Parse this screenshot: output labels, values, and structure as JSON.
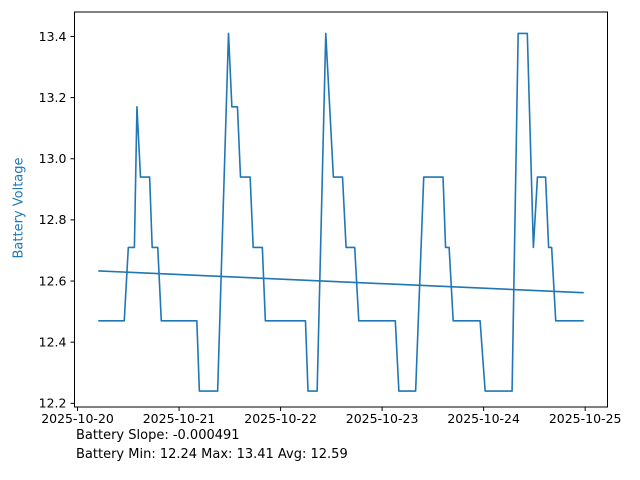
{
  "chart_data": {
    "type": "line",
    "title": "",
    "ylabel": "Battery Voltage",
    "xlabel": "",
    "background": "#ffffff",
    "axis_color": "#000000",
    "accent_color": "#1f77b4",
    "grid": false,
    "legend": "none",
    "x_unit": "date",
    "xlim": [
      -0.03,
      5.22
    ],
    "ylim": [
      12.188,
      13.48
    ],
    "x_ticks": [
      {
        "value": 0,
        "label": "2025-10-20"
      },
      {
        "value": 1,
        "label": "2025-10-21"
      },
      {
        "value": 2,
        "label": "2025-10-22"
      },
      {
        "value": 3,
        "label": "2025-10-23"
      },
      {
        "value": 4,
        "label": "2025-10-24"
      },
      {
        "value": 5,
        "label": "2025-10-25"
      }
    ],
    "y_ticks": [
      {
        "value": 12.2,
        "label": "12.2"
      },
      {
        "value": 12.4,
        "label": "12.4"
      },
      {
        "value": 12.6,
        "label": "12.6"
      },
      {
        "value": 12.8,
        "label": "12.8"
      },
      {
        "value": 13.0,
        "label": "13.0"
      },
      {
        "value": 13.2,
        "label": "13.2"
      },
      {
        "value": 13.4,
        "label": "13.4"
      }
    ],
    "series": [
      {
        "name": "Battery Voltage",
        "color": "#1f77b4",
        "width": 1.6,
        "points": [
          [
            0.21,
            12.47
          ],
          [
            0.46,
            12.47
          ],
          [
            0.5,
            12.71
          ],
          [
            0.56,
            12.71
          ],
          [
            0.585,
            13.17
          ],
          [
            0.62,
            12.94
          ],
          [
            0.71,
            12.94
          ],
          [
            0.735,
            12.71
          ],
          [
            0.79,
            12.71
          ],
          [
            0.825,
            12.47
          ],
          [
            1.175,
            12.47
          ],
          [
            1.2,
            12.24
          ],
          [
            1.38,
            12.24
          ],
          [
            1.487,
            13.41
          ],
          [
            1.52,
            13.17
          ],
          [
            1.575,
            13.17
          ],
          [
            1.605,
            12.94
          ],
          [
            1.7,
            12.94
          ],
          [
            1.73,
            12.71
          ],
          [
            1.82,
            12.71
          ],
          [
            1.85,
            12.47
          ],
          [
            2.245,
            12.47
          ],
          [
            2.27,
            12.24
          ],
          [
            2.36,
            12.24
          ],
          [
            2.445,
            13.41
          ],
          [
            2.52,
            12.94
          ],
          [
            2.61,
            12.94
          ],
          [
            2.645,
            12.71
          ],
          [
            2.73,
            12.71
          ],
          [
            2.77,
            12.47
          ],
          [
            3.13,
            12.47
          ],
          [
            3.165,
            12.24
          ],
          [
            3.33,
            12.24
          ],
          [
            3.41,
            12.94
          ],
          [
            3.6,
            12.94
          ],
          [
            3.625,
            12.71
          ],
          [
            3.66,
            12.71
          ],
          [
            3.7,
            12.47
          ],
          [
            3.965,
            12.47
          ],
          [
            4.015,
            12.24
          ],
          [
            4.28,
            12.24
          ],
          [
            4.34,
            13.41
          ],
          [
            4.43,
            13.41
          ],
          [
            4.49,
            12.71
          ],
          [
            4.53,
            12.94
          ],
          [
            4.61,
            12.94
          ],
          [
            4.64,
            12.71
          ],
          [
            4.67,
            12.71
          ],
          [
            4.71,
            12.47
          ],
          [
            4.98,
            12.47
          ]
        ]
      },
      {
        "name": "Trend",
        "color": "#1f77b4",
        "width": 1.6,
        "points": [
          [
            0.21,
            12.633
          ],
          [
            4.98,
            12.562
          ]
        ]
      }
    ],
    "annotations": [
      "Battery Slope: -0.000491",
      "Battery Min: 12.24 Max: 13.41 Avg: 12.59"
    ],
    "stats": {
      "slope": -0.000491,
      "min": 12.24,
      "max": 13.41,
      "avg": 12.59
    }
  }
}
